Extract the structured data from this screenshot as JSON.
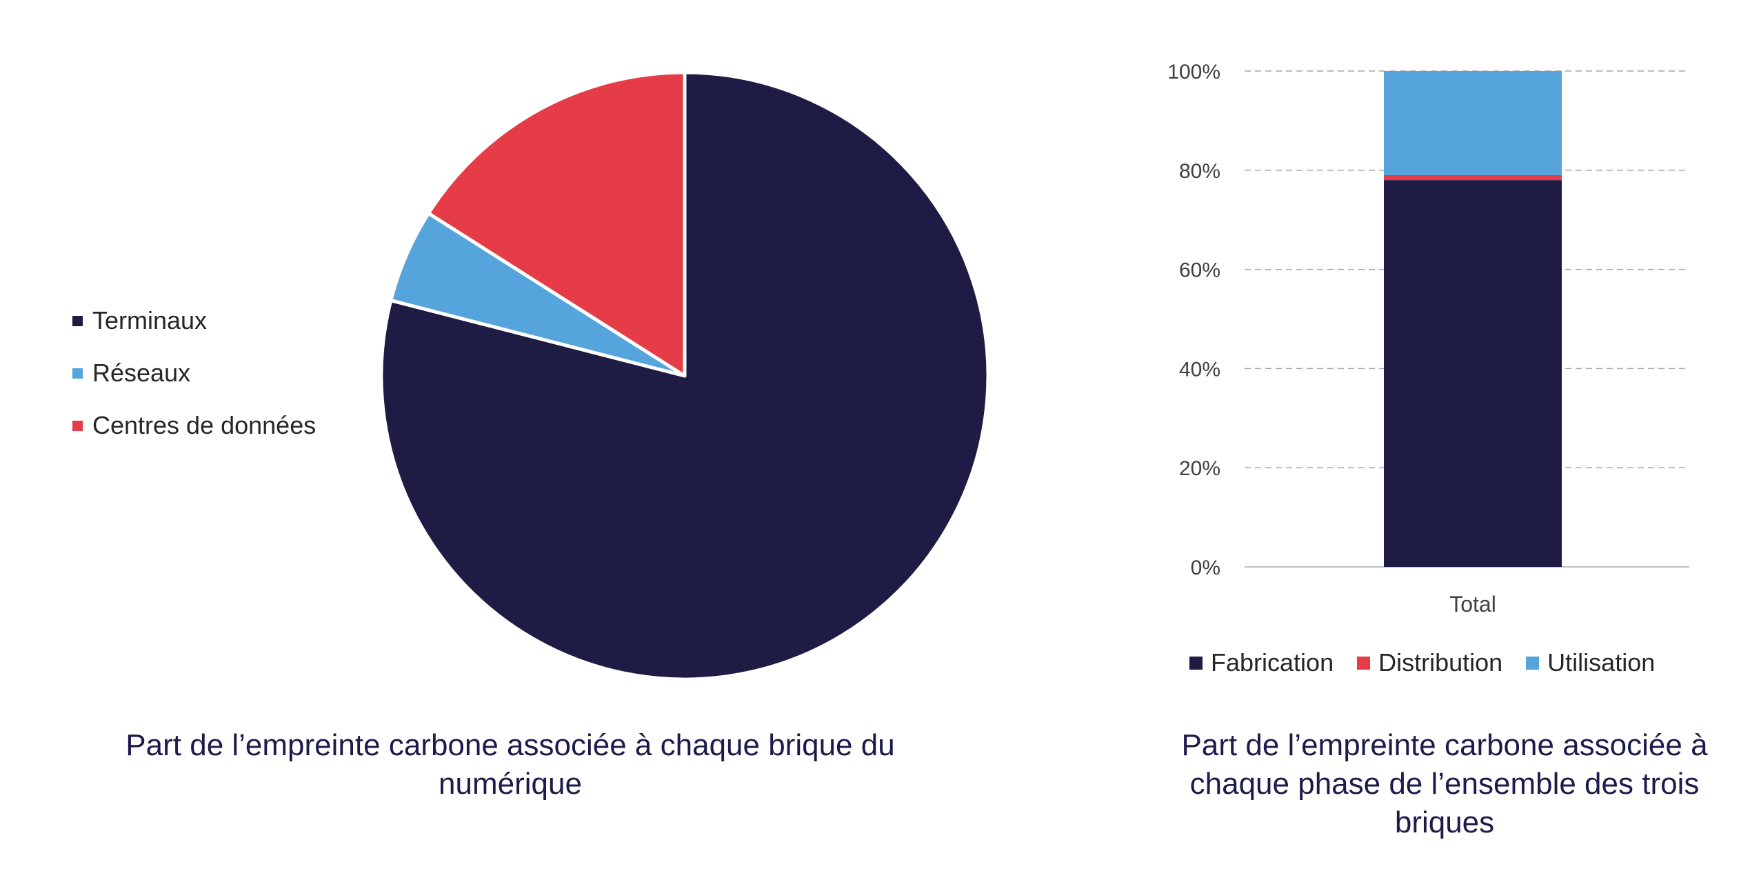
{
  "colors": {
    "terminaux": "#1e1b44",
    "reseaux": "#56a4dc",
    "centres": "#e63c47",
    "fabrication": "#1e1b44",
    "distribution": "#e63c47",
    "utilisation": "#56a4dc",
    "grid": "#a6a6a6",
    "axis_text": "#404040"
  },
  "chart_data": [
    {
      "type": "pie",
      "title": "Part de l’empreinte carbone associée à chaque brique du numérique",
      "legend_position": "left",
      "start_angle_deg": 0,
      "direction": "clockwise",
      "slices": [
        {
          "label": "Terminaux",
          "value": 79
        },
        {
          "label": "Réseaux",
          "value": 5
        },
        {
          "label": "Centres de données",
          "value": 16
        }
      ]
    },
    {
      "type": "bar",
      "stacked": true,
      "title": "Part de l’empreinte carbone associée à chaque phase de l’ensemble des trois briques",
      "categories": [
        "Total"
      ],
      "series": [
        {
          "name": "Fabrication",
          "values": [
            78
          ]
        },
        {
          "name": "Distribution",
          "values": [
            1
          ]
        },
        {
          "name": "Utilisation",
          "values": [
            21
          ]
        }
      ],
      "ylim": [
        0,
        100
      ],
      "yticks": [
        "0%",
        "20%",
        "40%",
        "60%",
        "80%",
        "100%"
      ],
      "grid": "dashed horizontal",
      "legend_position": "bottom"
    }
  ]
}
